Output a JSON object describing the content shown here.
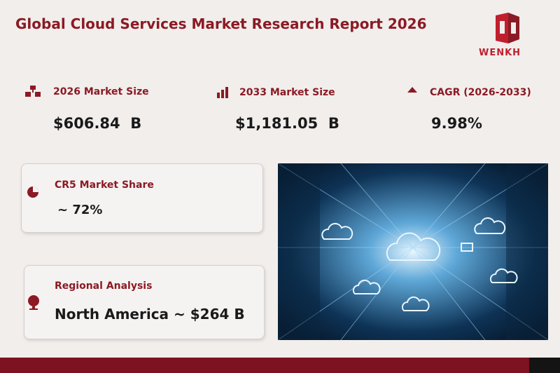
{
  "header": {
    "title": "Global Cloud Services Market Research Report 2026",
    "logo": "WENKH"
  },
  "stats": [
    {
      "label": "2026 Market Size",
      "value": "$606.84  B"
    },
    {
      "label": "2033 Market Size",
      "value": "$1,181.05  B"
    },
    {
      "label": "CAGR (2026-2033)",
      "value": "9.98%"
    }
  ],
  "cards": [
    {
      "label": "CR5 Market Share",
      "value": "~ 72%"
    },
    {
      "label": "Regional Analysis",
      "value": "North America ~ $264 B"
    }
  ]
}
